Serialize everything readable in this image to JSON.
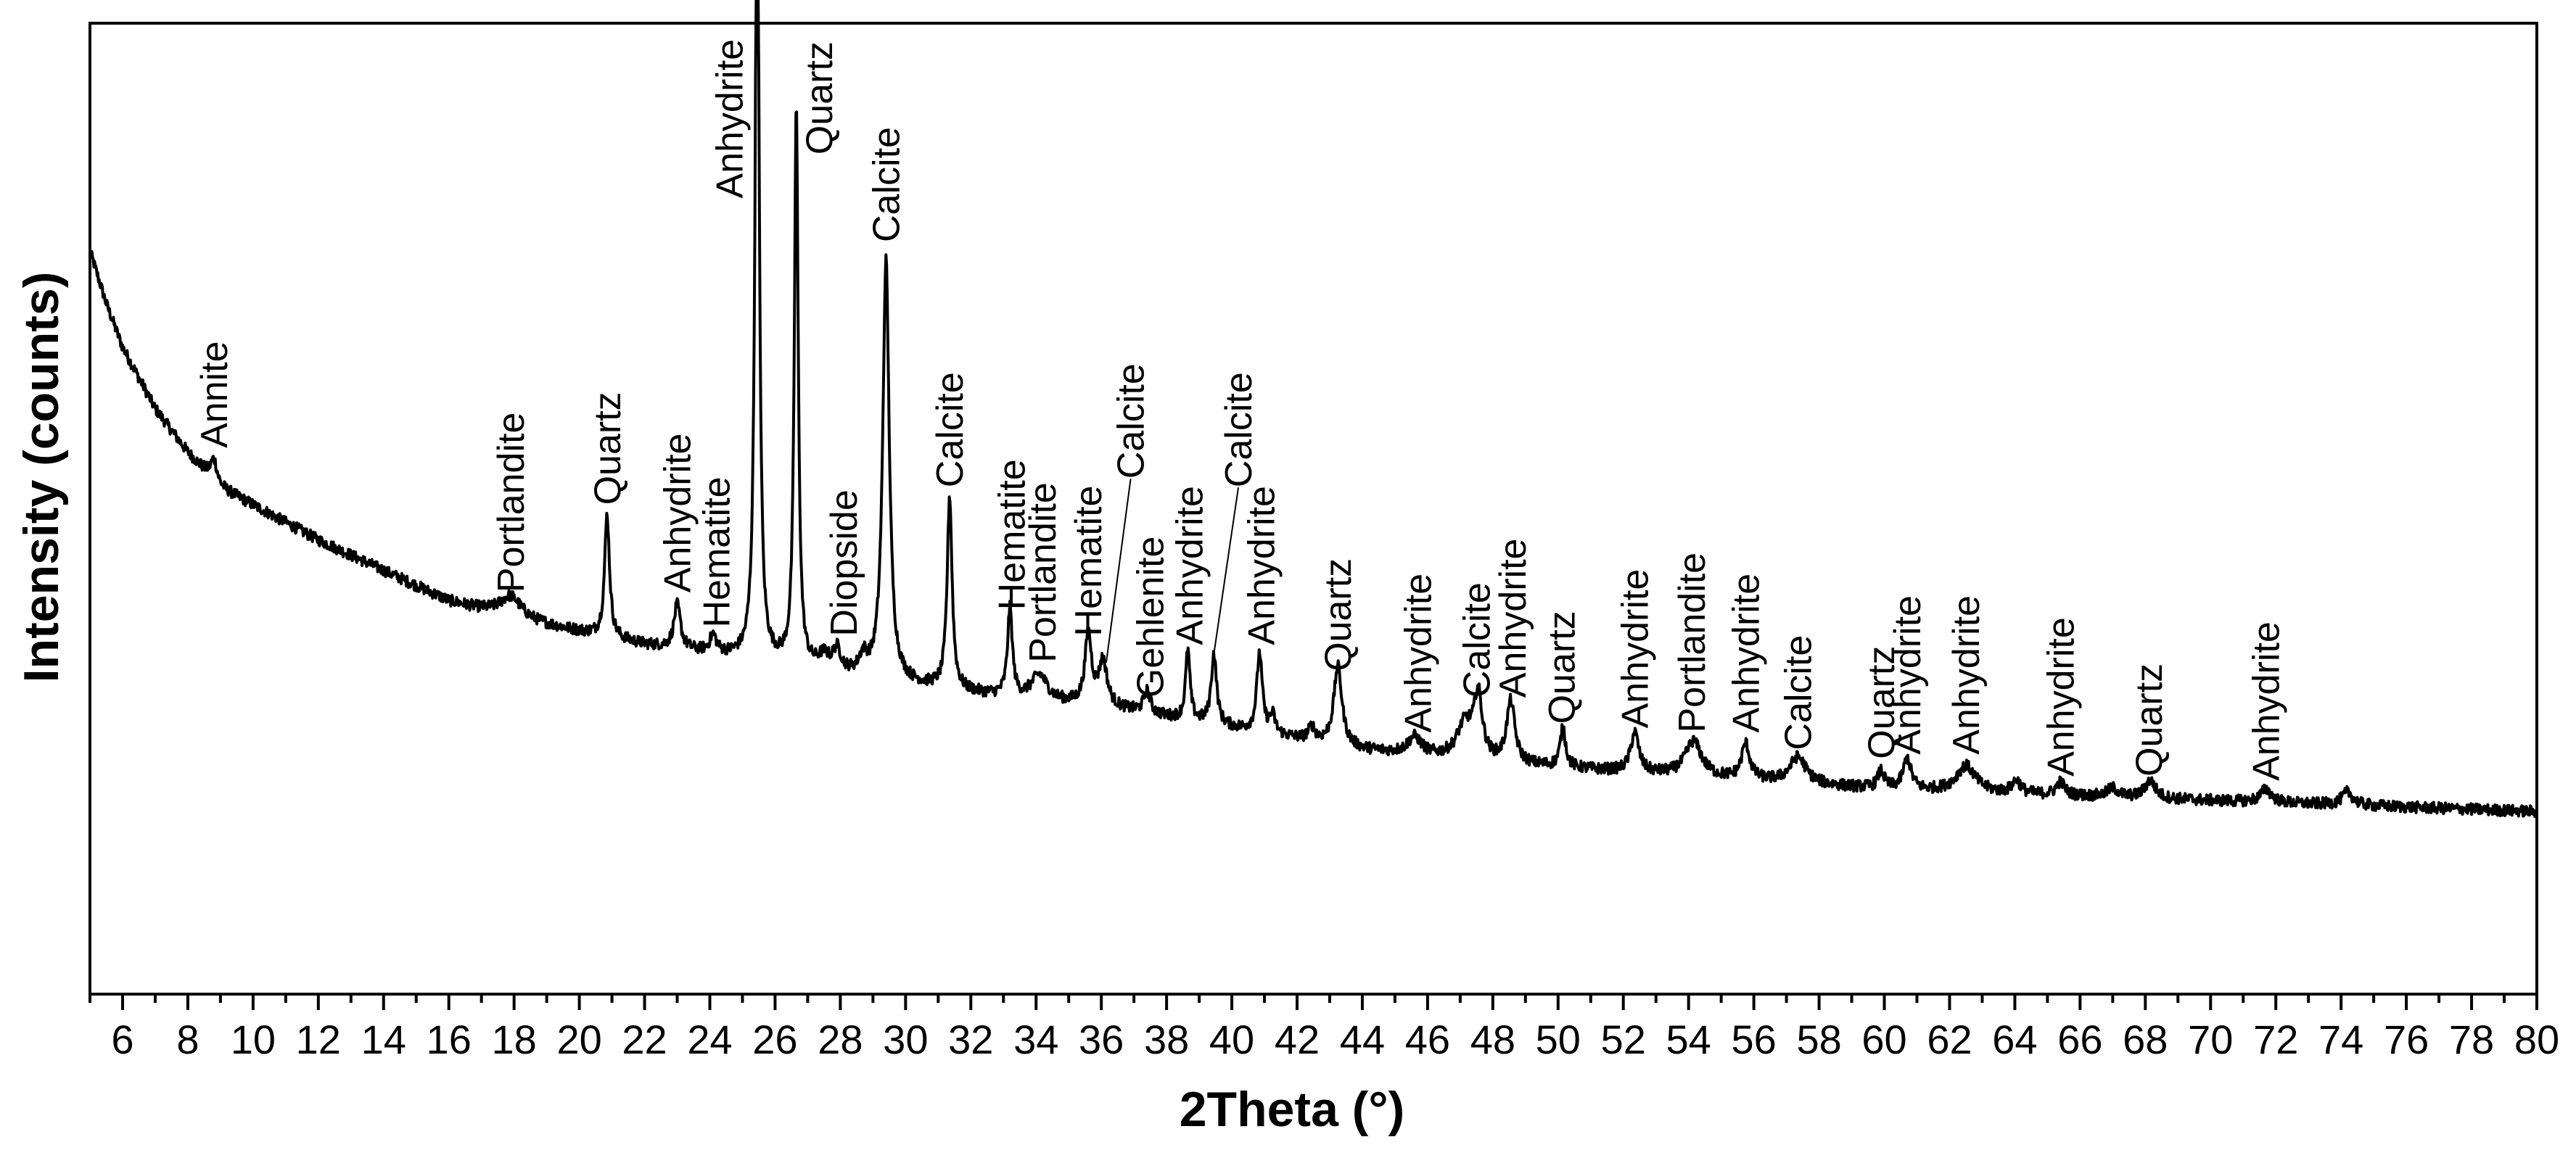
{
  "chart_data": {
    "type": "line",
    "title": "",
    "xlabel": "2Theta (°)",
    "ylabel": "Intensity (counts)",
    "xlim": [
      5,
      80
    ],
    "ylim": [
      0,
      100
    ],
    "x_ticks": [
      6,
      8,
      10,
      12,
      14,
      16,
      18,
      20,
      22,
      24,
      26,
      28,
      30,
      32,
      34,
      36,
      38,
      40,
      42,
      44,
      46,
      48,
      50,
      52,
      54,
      56,
      58,
      60,
      62,
      64,
      66,
      68,
      70,
      72,
      74,
      76,
      78,
      80
    ],
    "y_ticks_shown": false,
    "background_baseline": [
      {
        "x": 5.0,
        "y": 74
      },
      {
        "x": 5.5,
        "y": 68
      },
      {
        "x": 6.0,
        "y": 63
      },
      {
        "x": 7.0,
        "y": 56
      },
      {
        "x": 8.0,
        "y": 51
      },
      {
        "x": 9.0,
        "y": 47
      },
      {
        "x": 10.0,
        "y": 45
      },
      {
        "x": 12.0,
        "y": 41
      },
      {
        "x": 14.0,
        "y": 37.5
      },
      {
        "x": 16.0,
        "y": 34
      },
      {
        "x": 18.0,
        "y": 32
      },
      {
        "x": 20.0,
        "y": 30.5
      },
      {
        "x": 22.0,
        "y": 29
      },
      {
        "x": 24.0,
        "y": 28
      },
      {
        "x": 26.0,
        "y": 27
      },
      {
        "x": 28.0,
        "y": 25.5
      },
      {
        "x": 30.0,
        "y": 24.5
      },
      {
        "x": 32.0,
        "y": 23.5
      },
      {
        "x": 34.0,
        "y": 22.5
      },
      {
        "x": 36.0,
        "y": 22
      },
      {
        "x": 40.0,
        "y": 19.5
      },
      {
        "x": 44.0,
        "y": 17
      },
      {
        "x": 48.0,
        "y": 15.5
      },
      {
        "x": 52.0,
        "y": 14.5
      },
      {
        "x": 56.0,
        "y": 13.5
      },
      {
        "x": 60.0,
        "y": 12.5
      },
      {
        "x": 64.0,
        "y": 12
      },
      {
        "x": 68.0,
        "y": 11.5
      },
      {
        "x": 72.0,
        "y": 11
      },
      {
        "x": 76.0,
        "y": 10.5
      },
      {
        "x": 80.0,
        "y": 10
      }
    ],
    "peaks": [
      {
        "x": 8.8,
        "height": 2.5,
        "width": 0.12
      },
      {
        "x": 17.9,
        "height": 2.5,
        "width": 0.4
      },
      {
        "x": 20.85,
        "height": 14,
        "width": 0.09
      },
      {
        "x": 23.0,
        "height": 5,
        "width": 0.12
      },
      {
        "x": 24.1,
        "height": 2,
        "width": 0.12
      },
      {
        "x": 25.45,
        "height": 100,
        "width": 0.07
      },
      {
        "x": 26.65,
        "height": 64,
        "width": 0.07
      },
      {
        "x": 27.5,
        "height": 1.5,
        "width": 0.2
      },
      {
        "x": 27.9,
        "height": 2.5,
        "width": 0.15
      },
      {
        "x": 28.7,
        "height": 2,
        "width": 0.15
      },
      {
        "x": 29.4,
        "height": 48,
        "width": 0.12
      },
      {
        "x": 31.35,
        "height": 22,
        "width": 0.09
      },
      {
        "x": 33.2,
        "height": 10,
        "width": 0.09
      },
      {
        "x": 34.1,
        "height": 3,
        "width": 0.3
      },
      {
        "x": 35.6,
        "height": 8,
        "width": 0.12
      },
      {
        "x": 36.05,
        "height": 5,
        "width": 0.15
      },
      {
        "x": 37.4,
        "height": 2.5,
        "width": 0.12
      },
      {
        "x": 38.65,
        "height": 8,
        "width": 0.08
      },
      {
        "x": 39.45,
        "height": 8,
        "width": 0.1
      },
      {
        "x": 40.85,
        "height": 9,
        "width": 0.1
      },
      {
        "x": 41.25,
        "height": 2,
        "width": 0.1
      },
      {
        "x": 42.45,
        "height": 1.5,
        "width": 0.12
      },
      {
        "x": 43.25,
        "height": 9,
        "width": 0.15
      },
      {
        "x": 45.6,
        "height": 2,
        "width": 0.25
      },
      {
        "x": 47.15,
        "height": 4,
        "width": 0.3
      },
      {
        "x": 47.55,
        "height": 7,
        "width": 0.15
      },
      {
        "x": 48.55,
        "height": 7,
        "width": 0.15
      },
      {
        "x": 50.15,
        "height": 4.5,
        "width": 0.1
      },
      {
        "x": 52.35,
        "height": 4.5,
        "width": 0.15
      },
      {
        "x": 54.15,
        "height": 4,
        "width": 0.3
      },
      {
        "x": 55.75,
        "height": 4,
        "width": 0.15
      },
      {
        "x": 57.35,
        "height": 3,
        "width": 0.3
      },
      {
        "x": 59.9,
        "height": 2,
        "width": 0.12
      },
      {
        "x": 60.7,
        "height": 3.5,
        "width": 0.15
      },
      {
        "x": 62.5,
        "height": 3,
        "width": 0.35
      },
      {
        "x": 64.05,
        "height": 1.5,
        "width": 0.15
      },
      {
        "x": 65.4,
        "height": 1.5,
        "width": 0.15
      },
      {
        "x": 67.0,
        "height": 1,
        "width": 0.2
      },
      {
        "x": 68.15,
        "height": 2,
        "width": 0.2
      },
      {
        "x": 71.7,
        "height": 1.5,
        "width": 0.2
      },
      {
        "x": 74.2,
        "height": 1.5,
        "width": 0.2
      }
    ],
    "annotations": [
      {
        "text": "Annite",
        "x": 8.8,
        "y": 51.5
      },
      {
        "text": "Portlandite",
        "x": 17.9,
        "y": 35
      },
      {
        "text": "Quartz",
        "x": 20.85,
        "y": 45
      },
      {
        "text": "Anhydrite",
        "x": 23.0,
        "y": 35
      },
      {
        "text": "Hematite",
        "x": 24.2,
        "y": 31
      },
      {
        "text": "Anhydrite",
        "x": 24.6,
        "y": 80
      },
      {
        "text": "Quartz",
        "x": 27.35,
        "y": 85
      },
      {
        "text": "Diopside",
        "x": 28.1,
        "y": 30
      },
      {
        "text": "Calcite",
        "x": 29.4,
        "y": 75
      },
      {
        "text": "Calcite",
        "x": 31.35,
        "y": 47
      },
      {
        "text": "Hematite",
        "x": 33.25,
        "y": 33
      },
      {
        "text": "Portlandite",
        "x": 34.2,
        "y": 27
      },
      {
        "text": "Hematite",
        "x": 35.6,
        "y": 30
      },
      {
        "text": "Calcite",
        "x": 36.9,
        "y": 48,
        "leader_to": {
          "x": 36.15,
          "y": 27
        }
      },
      {
        "text": "Gehlenite",
        "x": 37.5,
        "y": 23
      },
      {
        "text": "Anhydrite",
        "x": 38.7,
        "y": 29
      },
      {
        "text": "Calcite",
        "x": 40.2,
        "y": 47,
        "leader_to": {
          "x": 39.45,
          "y": 28
        }
      },
      {
        "text": "Anhydrite",
        "x": 40.9,
        "y": 29
      },
      {
        "text": "Quartz",
        "x": 43.25,
        "y": 26
      },
      {
        "text": "Anhydrite",
        "x": 45.7,
        "y": 19
      },
      {
        "text": "Calcite",
        "x": 47.5,
        "y": 23
      },
      {
        "text": "Anhydrite",
        "x": 48.6,
        "y": 23
      },
      {
        "text": "Quartz",
        "x": 50.1,
        "y": 20
      },
      {
        "text": "Anhydrite",
        "x": 52.35,
        "y": 19.5
      },
      {
        "text": "Portlandite",
        "x": 54.1,
        "y": 19
      },
      {
        "text": "Anhydrite",
        "x": 55.75,
        "y": 19
      },
      {
        "text": "Calcite",
        "x": 57.35,
        "y": 17
      },
      {
        "text": "Quartz",
        "x": 59.9,
        "y": 16
      },
      {
        "text": "Anhydrite",
        "x": 60.7,
        "y": 16.5
      },
      {
        "text": "Anhydrite",
        "x": 62.5,
        "y": 16.5
      },
      {
        "text": "Anhydrite",
        "x": 65.4,
        "y": 14
      },
      {
        "text": "Quartz",
        "x": 68.1,
        "y": 14
      },
      {
        "text": "Anhydrite",
        "x": 71.7,
        "y": 13.5
      }
    ],
    "line_color": "#000000",
    "grid": false,
    "legend": "none"
  }
}
